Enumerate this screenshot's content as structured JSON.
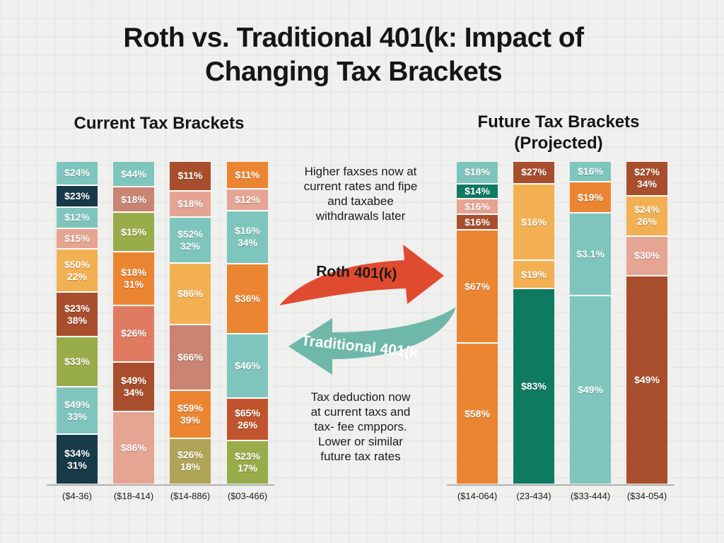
{
  "title_lines": [
    "Roth vs. Traditional 401(k: Impact of",
    "Changing Tax Brackets"
  ],
  "chart_data": [
    {
      "type": "bar",
      "stacked": true,
      "title": "Current Tax Brackets",
      "categories": [
        "($4-36)",
        "($18-414)",
        "($14-886)",
        "($03-466)"
      ],
      "stacks": [
        [
          {
            "lines": [
              "$24%"
            ],
            "weight": 32,
            "color": "#7ec6bd"
          },
          {
            "lines": [
              "$23%"
            ],
            "weight": 30,
            "color": "#163a48"
          },
          {
            "lines": [
              "$12%"
            ],
            "weight": 28,
            "color": "#7ec6bd"
          },
          {
            "lines": [
              "$15%"
            ],
            "weight": 28,
            "color": "#e6a492"
          },
          {
            "lines": [
              "$50%",
              "22%"
            ],
            "weight": 60,
            "color": "#f3b052"
          },
          {
            "lines": [
              "$23%",
              "38%"
            ],
            "weight": 62,
            "color": "#a84e2d"
          },
          {
            "lines": [
              "$33%"
            ],
            "weight": 70,
            "color": "#98ad49"
          },
          {
            "lines": [
              "$49%",
              "33%"
            ],
            "weight": 66,
            "color": "#7ec6bd"
          },
          {
            "lines": [
              "$34%",
              "31%"
            ],
            "weight": 70,
            "color": "#163a48"
          }
        ],
        [
          {
            "lines": [
              "$44%"
            ],
            "weight": 36,
            "color": "#7ec6bd"
          },
          {
            "lines": [
              "$18%"
            ],
            "weight": 36,
            "color": "#c98473"
          },
          {
            "lines": [
              "$15%"
            ],
            "weight": 56,
            "color": "#98ad49"
          },
          {
            "lines": [
              "$18%",
              "31%"
            ],
            "weight": 78,
            "color": "#ec8532"
          },
          {
            "lines": [
              "$26%"
            ],
            "weight": 82,
            "color": "#e07b62"
          },
          {
            "lines": [
              "$49%",
              "34%"
            ],
            "weight": 72,
            "color": "#a84e2d"
          },
          {
            "lines": [
              "$86%"
            ],
            "weight": 106,
            "color": "#e6a492"
          }
        ],
        [
          {
            "lines": [
              "$11%"
            ],
            "weight": 40,
            "color": "#a84e2d"
          },
          {
            "lines": [
              "$18%"
            ],
            "weight": 36,
            "color": "#e6a492"
          },
          {
            "lines": [
              "$52%",
              "32%"
            ],
            "weight": 64,
            "color": "#7ec6bd"
          },
          {
            "lines": [
              "$86%"
            ],
            "weight": 86,
            "color": "#f3b052"
          },
          {
            "lines": [
              "$66%"
            ],
            "weight": 92,
            "color": "#c98473"
          },
          {
            "lines": [
              "$59%",
              "39%"
            ],
            "weight": 66,
            "color": "#ec8532"
          },
          {
            "lines": [
              "$26%",
              "18%"
            ],
            "weight": 64,
            "color": "#b0a556"
          }
        ],
        [
          {
            "lines": [
              "$11%"
            ],
            "weight": 36,
            "color": "#ec8532"
          },
          {
            "lines": [
              "$12%"
            ],
            "weight": 28,
            "color": "#e6a492"
          },
          {
            "lines": [
              "$16%",
              "34%"
            ],
            "weight": 70,
            "color": "#7ec6bd"
          },
          {
            "lines": [
              "$36%"
            ],
            "weight": 94,
            "color": "#ec8532"
          },
          {
            "lines": [
              "$46%"
            ],
            "weight": 86,
            "color": "#7ec6bd"
          },
          {
            "lines": [
              "$65%",
              "26%"
            ],
            "weight": 56,
            "color": "#c0542d"
          },
          {
            "lines": [
              "$23%",
              "17%"
            ],
            "weight": 58,
            "color": "#98ad49"
          }
        ]
      ]
    },
    {
      "type": "bar",
      "stacked": true,
      "title": "Future Tax Brackets (Projected)",
      "title_lines": [
        "Future Tax Brackets",
        "(Projected)"
      ],
      "categories": [
        "($14-064)",
        "(23-434)",
        "($33-444)",
        "($34-054)"
      ],
      "stacks": [
        [
          {
            "lines": [
              "$18%"
            ],
            "weight": 30,
            "color": "#7ec6bd"
          },
          {
            "lines": [
              "$14%"
            ],
            "weight": 20,
            "color": "#0f7a62"
          },
          {
            "lines": [
              "$16%"
            ],
            "weight": 20,
            "color": "#e6a492"
          },
          {
            "lines": [
              "$16%"
            ],
            "weight": 20,
            "color": "#a84e2d"
          },
          {
            "lines": [
              "$67%"
            ],
            "weight": 160,
            "color": "#ec8532"
          },
          {
            "lines": [
              "$58%"
            ],
            "weight": 200,
            "color": "#ec8532"
          }
        ],
        [
          {
            "lines": [
              "$27%"
            ],
            "weight": 30,
            "color": "#a84e2d"
          },
          {
            "lines": [
              "$16%"
            ],
            "weight": 108,
            "color": "#f3b052"
          },
          {
            "lines": [
              "$19%"
            ],
            "weight": 38,
            "color": "#f3b052"
          },
          {
            "lines": [
              "$83%"
            ],
            "weight": 278,
            "color": "#0f7a62"
          }
        ],
        [
          {
            "lines": [
              "$16%"
            ],
            "weight": 28,
            "color": "#7ec6bd"
          },
          {
            "lines": [
              "$19%"
            ],
            "weight": 42,
            "color": "#ec8532"
          },
          {
            "lines": [
              "$3.1%"
            ],
            "weight": 118,
            "color": "#7ec6bd"
          },
          {
            "lines": [
              "$49%"
            ],
            "weight": 270,
            "color": "#7ec6bd"
          }
        ],
        [
          {
            "lines": [
              "$27%",
              "34%"
            ],
            "weight": 48,
            "color": "#a84e2d"
          },
          {
            "lines": [
              "$24%",
              "26%"
            ],
            "weight": 56,
            "color": "#f3b052"
          },
          {
            "lines": [
              "$30%"
            ],
            "weight": 56,
            "color": "#e6a492"
          },
          {
            "lines": [
              "$49%"
            ],
            "weight": 300,
            "color": "#a84e2d"
          }
        ]
      ]
    }
  ],
  "annotations": {
    "top": [
      "Higher faxses now at",
      "current rates and fipe",
      "and taxabee",
      "withdrawals later"
    ],
    "bottom": [
      "Tax deduction now",
      "at current taxs and",
      "tax- fee cmppors.",
      "Lower or similar",
      "future tax rates"
    ]
  },
  "arrows": {
    "roth_label": "Roth 401(k)",
    "roth_color": "#e04a2e",
    "traditional_label": "Traditional 401(k",
    "traditional_color": "#6fb8a9"
  }
}
